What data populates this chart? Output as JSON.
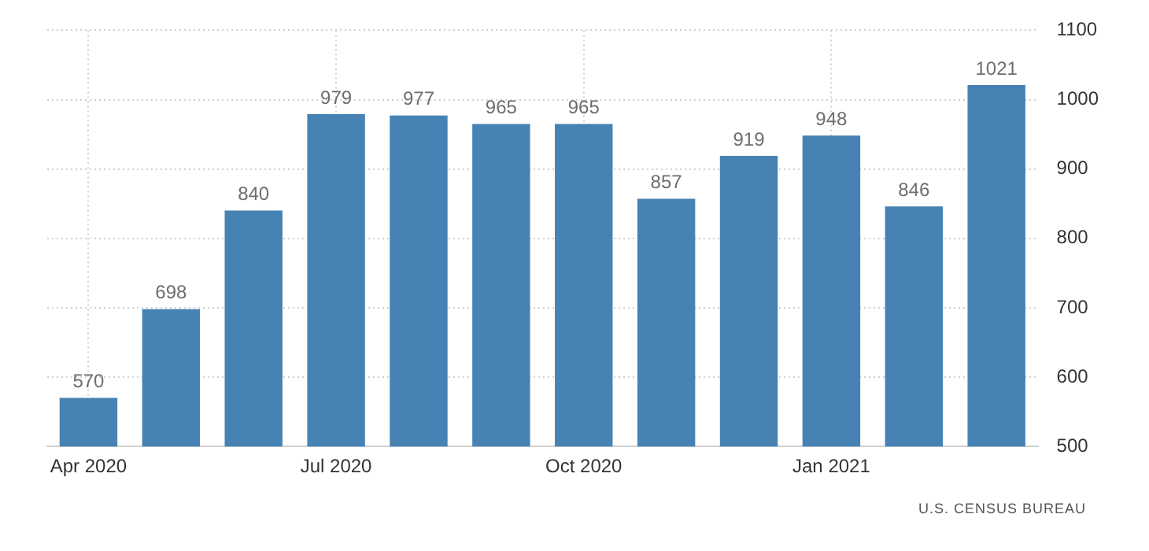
{
  "chart_data": {
    "type": "bar",
    "categories": [
      "Apr 2020",
      null,
      null,
      "Jul 2020",
      null,
      null,
      "Oct 2020",
      null,
      null,
      "Jan 2021",
      null,
      null
    ],
    "values": [
      570,
      698,
      840,
      979,
      977,
      965,
      965,
      857,
      919,
      948,
      846,
      1021
    ],
    "color": "#4682b4",
    "ylim": [
      500,
      1100
    ],
    "yticks": [
      500,
      600,
      700,
      800,
      900,
      1000,
      1100
    ],
    "grid": true,
    "data_labels": true,
    "annotations": [
      "U.S. CENSUS BUREAU"
    ]
  }
}
